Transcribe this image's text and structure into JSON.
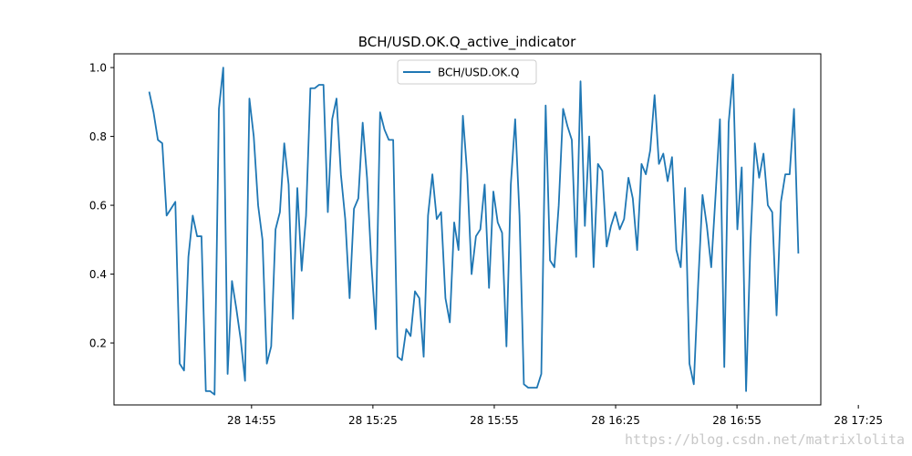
{
  "chart_data": {
    "type": "line",
    "title": "BCH/USD.OK.Q_active_indicator",
    "xlabel": "",
    "ylabel": "",
    "xlim_minutes": [
      14.35,
      17.262
    ],
    "ylim": [
      0.02,
      1.04
    ],
    "x_ticks": [
      {
        "label": "28 14:55",
        "value": 14.9167
      },
      {
        "label": "28 15:25",
        "value": 15.4167
      },
      {
        "label": "28 15:55",
        "value": 15.9167
      },
      {
        "label": "28 16:25",
        "value": 16.4167
      },
      {
        "label": "28 16:55",
        "value": 16.9167
      },
      {
        "label": "28 17:25",
        "value": 17.4167
      }
    ],
    "y_ticks": [
      0.2,
      0.4,
      0.6,
      0.8,
      1.0
    ],
    "y_tick_labels": [
      "0.2",
      "0.4",
      "0.6",
      "0.8",
      "1.0"
    ],
    "legend": {
      "placement": "top-center",
      "entries": [
        "BCH/USD.OK.Q"
      ]
    },
    "grid": false,
    "series": [
      {
        "name": "BCH/USD.OK.Q",
        "color": "#1f77b4",
        "x_start_hour": 14.495,
        "x_step_hour": 0.01795,
        "values": [
          0.93,
          0.87,
          0.79,
          0.78,
          0.57,
          0.59,
          0.61,
          0.14,
          0.12,
          0.45,
          0.57,
          0.51,
          0.51,
          0.06,
          0.06,
          0.05,
          0.88,
          1.0,
          0.11,
          0.38,
          0.3,
          0.21,
          0.09,
          0.91,
          0.8,
          0.6,
          0.5,
          0.14,
          0.19,
          0.53,
          0.58,
          0.78,
          0.66,
          0.27,
          0.65,
          0.41,
          0.57,
          0.94,
          0.94,
          0.95,
          0.95,
          0.58,
          0.85,
          0.91,
          0.69,
          0.56,
          0.33,
          0.59,
          0.62,
          0.84,
          0.68,
          0.43,
          0.24,
          0.87,
          0.82,
          0.79,
          0.79,
          0.16,
          0.15,
          0.24,
          0.22,
          0.35,
          0.33,
          0.16,
          0.57,
          0.69,
          0.56,
          0.58,
          0.33,
          0.26,
          0.55,
          0.47,
          0.86,
          0.69,
          0.4,
          0.51,
          0.53,
          0.66,
          0.36,
          0.64,
          0.55,
          0.52,
          0.19,
          0.66,
          0.85,
          0.57,
          0.08,
          0.07,
          0.07,
          0.07,
          0.11,
          0.89,
          0.44,
          0.42,
          0.6,
          0.88,
          0.83,
          0.79,
          0.45,
          0.96,
          0.54,
          0.8,
          0.42,
          0.72,
          0.7,
          0.48,
          0.54,
          0.58,
          0.53,
          0.56,
          0.68,
          0.62,
          0.47,
          0.72,
          0.69,
          0.76,
          0.92,
          0.72,
          0.75,
          0.67,
          0.74,
          0.47,
          0.42,
          0.65,
          0.14,
          0.08,
          0.37,
          0.63,
          0.54,
          0.42,
          0.63,
          0.85,
          0.13,
          0.84,
          0.98,
          0.53,
          0.71,
          0.06,
          0.49,
          0.78,
          0.68,
          0.75,
          0.6,
          0.58,
          0.28,
          0.61,
          0.69,
          0.69,
          0.88,
          0.46
        ]
      }
    ]
  },
  "watermark": "https://blog.csdn.net/matrixlolita"
}
